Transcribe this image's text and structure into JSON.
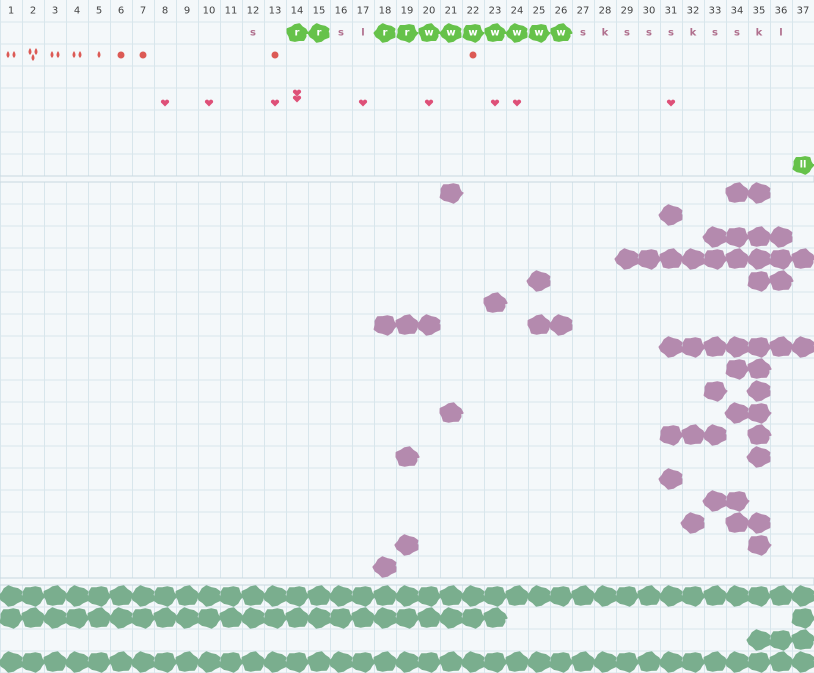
{
  "columns": [
    1,
    2,
    3,
    4,
    5,
    6,
    7,
    8,
    9,
    10,
    11,
    12,
    13,
    14,
    15,
    16,
    17,
    18,
    19,
    20,
    21,
    22,
    23,
    24,
    25,
    26,
    27,
    28,
    29,
    30,
    31,
    32,
    33,
    34,
    35,
    36,
    37
  ],
  "top_lane": {
    "labels": [
      {
        "col": 12,
        "text": "s"
      },
      {
        "col": 14,
        "text": "r",
        "badge": true
      },
      {
        "col": 15,
        "text": "r",
        "badge": true
      },
      {
        "col": 16,
        "text": "s"
      },
      {
        "col": 17,
        "text": "l"
      },
      {
        "col": 18,
        "text": "r",
        "badge": true
      },
      {
        "col": 19,
        "text": "r",
        "badge": true
      },
      {
        "col": 20,
        "text": "w",
        "badge": true
      },
      {
        "col": 21,
        "text": "w",
        "badge": true
      },
      {
        "col": 22,
        "text": "w",
        "badge": true
      },
      {
        "col": 23,
        "text": "w",
        "badge": true
      },
      {
        "col": 24,
        "text": "w",
        "badge": true
      },
      {
        "col": 25,
        "text": "w",
        "badge": true
      },
      {
        "col": 26,
        "text": "w",
        "badge": true
      },
      {
        "col": 27,
        "text": "s"
      },
      {
        "col": 28,
        "text": "k"
      },
      {
        "col": 29,
        "text": "s"
      },
      {
        "col": 30,
        "text": "s"
      },
      {
        "col": 31,
        "text": "s"
      },
      {
        "col": 32,
        "text": "k"
      },
      {
        "col": 33,
        "text": "s"
      },
      {
        "col": 34,
        "text": "s"
      },
      {
        "col": 35,
        "text": "k"
      },
      {
        "col": 36,
        "text": "l"
      }
    ],
    "marks": [
      {
        "col": 1,
        "kind": "drop",
        "count": 2
      },
      {
        "col": 2,
        "kind": "drop",
        "count": 3
      },
      {
        "col": 3,
        "kind": "drop",
        "count": 2
      },
      {
        "col": 4,
        "kind": "drop",
        "count": 2
      },
      {
        "col": 5,
        "kind": "drop",
        "count": 1
      },
      {
        "col": 6,
        "kind": "dot",
        "count": 1
      },
      {
        "col": 7,
        "kind": "dot",
        "count": 1
      },
      {
        "col": 13,
        "kind": "dot",
        "count": 1
      },
      {
        "col": 22,
        "kind": "dot",
        "count": 1
      }
    ],
    "hearts": [
      {
        "col": 8,
        "count": 1
      },
      {
        "col": 10,
        "count": 1
      },
      {
        "col": 13,
        "count": 1
      },
      {
        "col": 14,
        "count": 2
      },
      {
        "col": 17,
        "count": 1
      },
      {
        "col": 20,
        "count": 1
      },
      {
        "col": 23,
        "count": 1
      },
      {
        "col": 24,
        "count": 1
      },
      {
        "col": 31,
        "count": 1
      }
    ],
    "end_badge": {
      "col": 37,
      "text": "ll"
    }
  },
  "purple_lane": {
    "color": "#b48aae",
    "rows": [
      [
        21,
        34,
        35
      ],
      [
        31
      ],
      [
        33,
        34,
        35,
        36
      ],
      [
        29,
        30,
        31,
        32,
        33,
        34,
        35,
        36,
        37
      ],
      [
        25,
        35,
        36
      ],
      [
        23
      ],
      [
        18,
        19,
        20,
        25,
        26
      ],
      [
        31,
        32,
        33,
        34,
        35,
        36,
        37
      ],
      [
        34,
        35
      ],
      [
        33,
        35
      ],
      [
        21,
        34,
        35
      ],
      [
        31,
        32,
        33,
        35
      ],
      [
        19,
        35
      ],
      [
        31
      ],
      [
        33,
        34
      ],
      [
        32,
        34,
        35
      ],
      [
        19,
        35
      ],
      [
        18
      ]
    ]
  },
  "green_lane": {
    "color": "#7aae8e",
    "rows": [
      [
        1,
        2,
        3,
        4,
        5,
        6,
        7,
        8,
        9,
        10,
        11,
        12,
        13,
        14,
        15,
        16,
        17,
        18,
        19,
        20,
        21,
        22,
        23,
        24,
        25,
        26,
        27,
        28,
        29,
        30,
        31,
        32,
        33,
        34,
        35,
        36,
        37
      ],
      [
        1,
        2,
        3,
        4,
        5,
        6,
        7,
        8,
        9,
        10,
        11,
        12,
        13,
        14,
        15,
        16,
        17,
        18,
        19,
        20,
        21,
        22,
        23,
        37
      ],
      [
        35,
        36,
        37
      ],
      [
        1,
        2,
        3,
        4,
        5,
        6,
        7,
        8,
        9,
        10,
        11,
        12,
        13,
        14,
        15,
        16,
        17,
        18,
        19,
        20,
        21,
        22,
        23,
        24,
        25,
        26,
        27,
        28,
        29,
        30,
        31,
        32,
        33,
        34,
        35,
        36,
        37
      ]
    ]
  }
}
